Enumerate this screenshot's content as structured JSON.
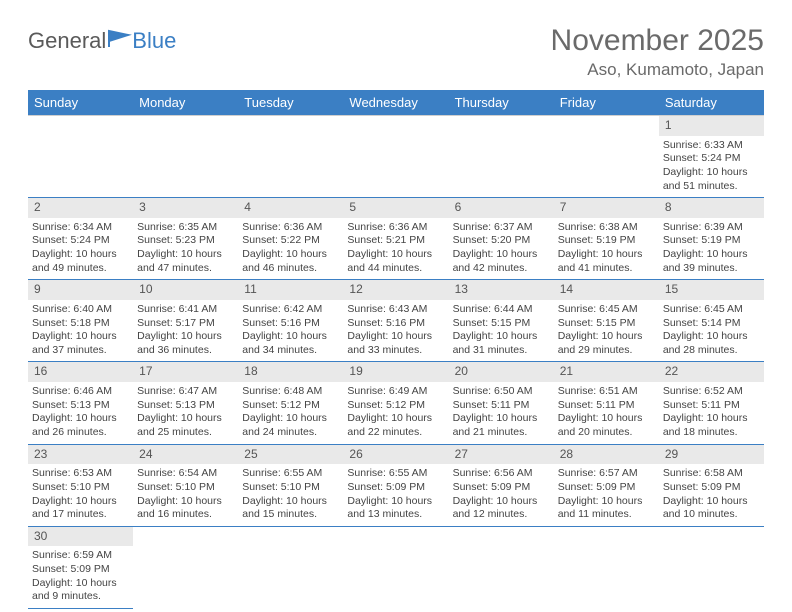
{
  "logo": {
    "word1": "General",
    "word2": "Blue"
  },
  "title": "November 2025",
  "location": "Aso, Kumamoto, Japan",
  "colors": {
    "headerBar": "#3b7fc4",
    "dayBand": "#e9e9e9",
    "rule": "#3b7fc4"
  },
  "weekdays": [
    "Sunday",
    "Monday",
    "Tuesday",
    "Wednesday",
    "Thursday",
    "Friday",
    "Saturday"
  ],
  "weeks": [
    [
      null,
      null,
      null,
      null,
      null,
      null,
      {
        "n": "1",
        "sr": "Sunrise: 6:33 AM",
        "ss": "Sunset: 5:24 PM",
        "dl": "Daylight: 10 hours and 51 minutes."
      }
    ],
    [
      {
        "n": "2",
        "sr": "Sunrise: 6:34 AM",
        "ss": "Sunset: 5:24 PM",
        "dl": "Daylight: 10 hours and 49 minutes."
      },
      {
        "n": "3",
        "sr": "Sunrise: 6:35 AM",
        "ss": "Sunset: 5:23 PM",
        "dl": "Daylight: 10 hours and 47 minutes."
      },
      {
        "n": "4",
        "sr": "Sunrise: 6:36 AM",
        "ss": "Sunset: 5:22 PM",
        "dl": "Daylight: 10 hours and 46 minutes."
      },
      {
        "n": "5",
        "sr": "Sunrise: 6:36 AM",
        "ss": "Sunset: 5:21 PM",
        "dl": "Daylight: 10 hours and 44 minutes."
      },
      {
        "n": "6",
        "sr": "Sunrise: 6:37 AM",
        "ss": "Sunset: 5:20 PM",
        "dl": "Daylight: 10 hours and 42 minutes."
      },
      {
        "n": "7",
        "sr": "Sunrise: 6:38 AM",
        "ss": "Sunset: 5:19 PM",
        "dl": "Daylight: 10 hours and 41 minutes."
      },
      {
        "n": "8",
        "sr": "Sunrise: 6:39 AM",
        "ss": "Sunset: 5:19 PM",
        "dl": "Daylight: 10 hours and 39 minutes."
      }
    ],
    [
      {
        "n": "9",
        "sr": "Sunrise: 6:40 AM",
        "ss": "Sunset: 5:18 PM",
        "dl": "Daylight: 10 hours and 37 minutes."
      },
      {
        "n": "10",
        "sr": "Sunrise: 6:41 AM",
        "ss": "Sunset: 5:17 PM",
        "dl": "Daylight: 10 hours and 36 minutes."
      },
      {
        "n": "11",
        "sr": "Sunrise: 6:42 AM",
        "ss": "Sunset: 5:16 PM",
        "dl": "Daylight: 10 hours and 34 minutes."
      },
      {
        "n": "12",
        "sr": "Sunrise: 6:43 AM",
        "ss": "Sunset: 5:16 PM",
        "dl": "Daylight: 10 hours and 33 minutes."
      },
      {
        "n": "13",
        "sr": "Sunrise: 6:44 AM",
        "ss": "Sunset: 5:15 PM",
        "dl": "Daylight: 10 hours and 31 minutes."
      },
      {
        "n": "14",
        "sr": "Sunrise: 6:45 AM",
        "ss": "Sunset: 5:15 PM",
        "dl": "Daylight: 10 hours and 29 minutes."
      },
      {
        "n": "15",
        "sr": "Sunrise: 6:45 AM",
        "ss": "Sunset: 5:14 PM",
        "dl": "Daylight: 10 hours and 28 minutes."
      }
    ],
    [
      {
        "n": "16",
        "sr": "Sunrise: 6:46 AM",
        "ss": "Sunset: 5:13 PM",
        "dl": "Daylight: 10 hours and 26 minutes."
      },
      {
        "n": "17",
        "sr": "Sunrise: 6:47 AM",
        "ss": "Sunset: 5:13 PM",
        "dl": "Daylight: 10 hours and 25 minutes."
      },
      {
        "n": "18",
        "sr": "Sunrise: 6:48 AM",
        "ss": "Sunset: 5:12 PM",
        "dl": "Daylight: 10 hours and 24 minutes."
      },
      {
        "n": "19",
        "sr": "Sunrise: 6:49 AM",
        "ss": "Sunset: 5:12 PM",
        "dl": "Daylight: 10 hours and 22 minutes."
      },
      {
        "n": "20",
        "sr": "Sunrise: 6:50 AM",
        "ss": "Sunset: 5:11 PM",
        "dl": "Daylight: 10 hours and 21 minutes."
      },
      {
        "n": "21",
        "sr": "Sunrise: 6:51 AM",
        "ss": "Sunset: 5:11 PM",
        "dl": "Daylight: 10 hours and 20 minutes."
      },
      {
        "n": "22",
        "sr": "Sunrise: 6:52 AM",
        "ss": "Sunset: 5:11 PM",
        "dl": "Daylight: 10 hours and 18 minutes."
      }
    ],
    [
      {
        "n": "23",
        "sr": "Sunrise: 6:53 AM",
        "ss": "Sunset: 5:10 PM",
        "dl": "Daylight: 10 hours and 17 minutes."
      },
      {
        "n": "24",
        "sr": "Sunrise: 6:54 AM",
        "ss": "Sunset: 5:10 PM",
        "dl": "Daylight: 10 hours and 16 minutes."
      },
      {
        "n": "25",
        "sr": "Sunrise: 6:55 AM",
        "ss": "Sunset: 5:10 PM",
        "dl": "Daylight: 10 hours and 15 minutes."
      },
      {
        "n": "26",
        "sr": "Sunrise: 6:55 AM",
        "ss": "Sunset: 5:09 PM",
        "dl": "Daylight: 10 hours and 13 minutes."
      },
      {
        "n": "27",
        "sr": "Sunrise: 6:56 AM",
        "ss": "Sunset: 5:09 PM",
        "dl": "Daylight: 10 hours and 12 minutes."
      },
      {
        "n": "28",
        "sr": "Sunrise: 6:57 AM",
        "ss": "Sunset: 5:09 PM",
        "dl": "Daylight: 10 hours and 11 minutes."
      },
      {
        "n": "29",
        "sr": "Sunrise: 6:58 AM",
        "ss": "Sunset: 5:09 PM",
        "dl": "Daylight: 10 hours and 10 minutes."
      }
    ],
    [
      {
        "n": "30",
        "sr": "Sunrise: 6:59 AM",
        "ss": "Sunset: 5:09 PM",
        "dl": "Daylight: 10 hours and 9 minutes."
      },
      null,
      null,
      null,
      null,
      null,
      null
    ]
  ]
}
